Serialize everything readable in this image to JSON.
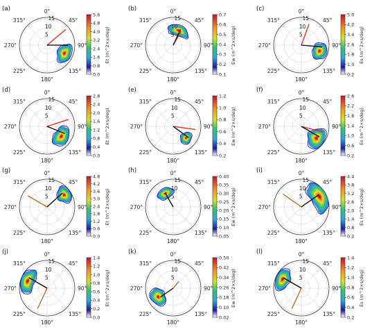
{
  "figure": {
    "angle_labels": [
      "0°",
      "45°",
      "90°",
      "135°",
      "180°",
      "225°",
      "270°",
      "315°"
    ],
    "radial_ticks": [
      5,
      10,
      15
    ]
  },
  "chart_data": [
    {
      "label": "(a)",
      "type": "heatmap",
      "projection": "polar-directional-spectrum",
      "colorbar_label": "Et (m^2×s/deg)",
      "colorbar_ticks": [
        "0.0",
        "0.8",
        "1.6",
        "2.4",
        "3.2",
        "4.0",
        "4.8",
        "5.6"
      ],
      "peak": {
        "direction_deg": 115,
        "radius": 11
      },
      "spread_deg": 28,
      "radial_spread": 4,
      "black_line": {
        "direction_deg": 90,
        "length": 12
      },
      "red_line": {
        "direction_deg": 50,
        "length": 14
      },
      "brown_line": null
    },
    {
      "label": "(b)",
      "type": "heatmap",
      "projection": "polar-directional-spectrum",
      "colorbar_label": "Ew (m^2×s/deg)",
      "colorbar_ticks": [
        "0.1",
        "0.2",
        "0.3",
        "0.4",
        "0.5",
        "0.6",
        "0.7"
      ],
      "peak": {
        "direction_deg": 20,
        "radius": 9
      },
      "spread_deg": 40,
      "radial_spread": 3,
      "black_line": {
        "direction_deg": 25,
        "length": 10
      },
      "red_line": {
        "direction_deg": 30,
        "length": 9
      },
      "brown_line": null
    },
    {
      "label": "(c)",
      "type": "heatmap",
      "projection": "polar-directional-spectrum",
      "colorbar_label": "Es (m^2×s/deg)",
      "colorbar_ticks": [
        "0.2",
        "1.0",
        "1.8",
        "2.6",
        "3.4",
        "4.2",
        "5.0"
      ],
      "peak": {
        "direction_deg": 108,
        "radius": 11
      },
      "spread_deg": 25,
      "radial_spread": 4,
      "black_line": {
        "direction_deg": 95,
        "length": 12
      },
      "red_line": {
        "direction_deg": 20,
        "length": 13
      },
      "brown_line": null
    },
    {
      "label": "(d)",
      "type": "heatmap",
      "projection": "polar-directional-spectrum",
      "colorbar_label": "Et (m^2×s/deg)",
      "colorbar_ticks": [
        "0.0",
        "0.4",
        "0.8",
        "1.2",
        "1.6",
        "2.0",
        "2.4",
        "2.8"
      ],
      "peak": {
        "direction_deg": 125,
        "radius": 10
      },
      "spread_deg": 35,
      "radial_spread": 4,
      "black_line": {
        "direction_deg": 112,
        "length": 11
      },
      "red_line": {
        "direction_deg": 72,
        "length": 13
      },
      "brown_line": null
    },
    {
      "label": "(e)",
      "type": "heatmap",
      "projection": "polar-directional-spectrum",
      "colorbar_label": "Ew (m^2×s/deg)",
      "colorbar_ticks": [
        "0.2",
        "0.4",
        "0.6",
        "0.8",
        "1.0",
        "1.2"
      ],
      "peak": {
        "direction_deg": 132,
        "radius": 10
      },
      "spread_deg": 20,
      "radial_spread": 3,
      "black_line": {
        "direction_deg": 126,
        "length": 11
      },
      "red_line": {
        "direction_deg": 98,
        "length": 13
      },
      "brown_line": null
    },
    {
      "label": "(f)",
      "type": "heatmap",
      "projection": "polar-directional-spectrum",
      "colorbar_label": "Es (m^2×s/deg)",
      "colorbar_ticks": [
        "0.2",
        "0.6",
        "1.0",
        "1.4",
        "1.8",
        "2.2",
        "2.6"
      ],
      "peak": {
        "direction_deg": 128,
        "radius": 11
      },
      "spread_deg": 30,
      "radial_spread": 5,
      "black_line": {
        "direction_deg": 120,
        "length": 12
      },
      "red_line": {
        "direction_deg": 105,
        "length": 13
      },
      "brown_line": null
    },
    {
      "label": "(g)",
      "type": "heatmap",
      "projection": "polar-directional-spectrum",
      "colorbar_label": "Et (m^2×s/deg)",
      "colorbar_ticks": [
        "0.0",
        "0.6",
        "1.2",
        "1.8",
        "2.4",
        "3.0",
        "3.6",
        "4.2",
        "4.8"
      ],
      "peak": {
        "direction_deg": 55,
        "radius": 12
      },
      "spread_deg": 22,
      "radial_spread": 4,
      "black_line": {
        "direction_deg": 48,
        "length": 12
      },
      "red_line": null,
      "brown_line": {
        "direction_deg": 300,
        "length": 13
      }
    },
    {
      "label": "(h)",
      "type": "heatmap",
      "projection": "polar-directional-spectrum",
      "colorbar_label": "Ew (m^2×s/deg)",
      "colorbar_ticks": [
        "0.05",
        "0.10",
        "0.15",
        "0.20",
        "0.25",
        "0.30",
        "0.35",
        "0.40"
      ],
      "peak": {
        "direction_deg": 330,
        "radius": 9
      },
      "spread_deg": 30,
      "radial_spread": 3,
      "black_line": {
        "direction_deg": 330,
        "length": 9
      },
      "red_line": null,
      "brown_line": {
        "direction_deg": 0,
        "length": 0
      }
    },
    {
      "label": "(i)",
      "type": "heatmap",
      "projection": "polar-directional-spectrum",
      "colorbar_label": "Es (m^2×s/deg)",
      "colorbar_ticks": [
        "0.2",
        "0.8",
        "1.4",
        "2.0",
        "2.6",
        "3.2",
        "3.8",
        "4.4"
      ],
      "peak": {
        "direction_deg": 60,
        "radius": 12
      },
      "spread_deg": 45,
      "radial_spread": 5,
      "black_line": {
        "direction_deg": 55,
        "length": 12
      },
      "red_line": null,
      "brown_line": {
        "direction_deg": 305,
        "length": 13
      }
    },
    {
      "label": "(j)",
      "type": "heatmap",
      "projection": "polar-directional-spectrum",
      "colorbar_label": "Et (m^2×s/deg)",
      "colorbar_ticks": [
        "0.0",
        "0.2",
        "0.4",
        "0.6",
        "0.8",
        "1.0",
        "1.2",
        "1.4"
      ],
      "peak": {
        "direction_deg": 290,
        "radius": 12
      },
      "spread_deg": 35,
      "radial_spread": 4,
      "black_line": {
        "direction_deg": 300,
        "length": 12
      },
      "red_line": null,
      "brown_line": {
        "direction_deg": 205,
        "length": 13
      }
    },
    {
      "label": "(k)",
      "type": "heatmap",
      "projection": "polar-directional-spectrum",
      "colorbar_label": "Ew (m^2×s/deg)",
      "colorbar_ticks": [
        "0.02",
        "0.10",
        "0.18",
        "0.26",
        "0.34",
        "0.42",
        "0.50"
      ],
      "peak": {
        "direction_deg": 240,
        "radius": 10
      },
      "spread_deg": 30,
      "radial_spread": 4,
      "black_line": {
        "direction_deg": 235,
        "length": 9
      },
      "red_line": null,
      "brown_line": {
        "direction_deg": 40,
        "length": 5
      }
    },
    {
      "label": "(l)",
      "type": "heatmap",
      "projection": "polar-directional-spectrum",
      "colorbar_label": "Es (m^2×s/deg)",
      "colorbar_ticks": [
        "0.2",
        "0.4",
        "0.6",
        "0.8",
        "1.0",
        "1.2",
        "1.4"
      ],
      "peak": {
        "direction_deg": 295,
        "radius": 12
      },
      "spread_deg": 30,
      "radial_spread": 4,
      "black_line": {
        "direction_deg": 300,
        "length": 12
      },
      "red_line": null,
      "brown_line": {
        "direction_deg": 205,
        "length": 13
      }
    }
  ]
}
